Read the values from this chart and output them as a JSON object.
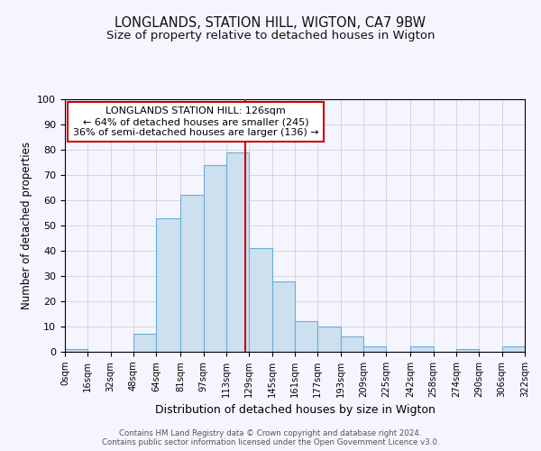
{
  "title": "LONGLANDS, STATION HILL, WIGTON, CA7 9BW",
  "subtitle": "Size of property relative to detached houses in Wigton",
  "xlabel": "Distribution of detached houses by size in Wigton",
  "ylabel": "Number of detached properties",
  "bin_edges": [
    0,
    16,
    32,
    48,
    64,
    81,
    97,
    113,
    129,
    145,
    161,
    177,
    193,
    209,
    225,
    242,
    258,
    274,
    290,
    306,
    322
  ],
  "bar_heights": [
    1,
    0,
    0,
    7,
    53,
    62,
    74,
    79,
    41,
    28,
    12,
    10,
    6,
    2,
    0,
    2,
    0,
    1,
    0,
    2
  ],
  "bar_facecolor": "#cce0f0",
  "bar_edgecolor": "#6aaed6",
  "vline_x": 126,
  "vline_color": "#cc0000",
  "ylim": [
    0,
    100
  ],
  "yticks": [
    0,
    10,
    20,
    30,
    40,
    50,
    60,
    70,
    80,
    90,
    100
  ],
  "xtick_labels": [
    "0sqm",
    "16sqm",
    "32sqm",
    "48sqm",
    "64sqm",
    "81sqm",
    "97sqm",
    "113sqm",
    "129sqm",
    "145sqm",
    "161sqm",
    "177sqm",
    "193sqm",
    "209sqm",
    "225sqm",
    "242sqm",
    "258sqm",
    "274sqm",
    "290sqm",
    "306sqm",
    "322sqm"
  ],
  "annotation_title": "LONGLANDS STATION HILL: 126sqm",
  "annotation_line1": "← 64% of detached houses are smaller (245)",
  "annotation_line2": "36% of semi-detached houses are larger (136) →",
  "annotation_box_edgecolor": "#cc0000",
  "annotation_box_facecolor": "#ffffff",
  "footer_line1": "Contains HM Land Registry data © Crown copyright and database right 2024.",
  "footer_line2": "Contains public sector information licensed under the Open Government Licence v3.0.",
  "bg_color": "#f5f5ff",
  "grid_color": "#cccccc",
  "title_fontsize": 10.5,
  "subtitle_fontsize": 9.5,
  "xlabel_fontsize": 9,
  "ylabel_fontsize": 8.5
}
